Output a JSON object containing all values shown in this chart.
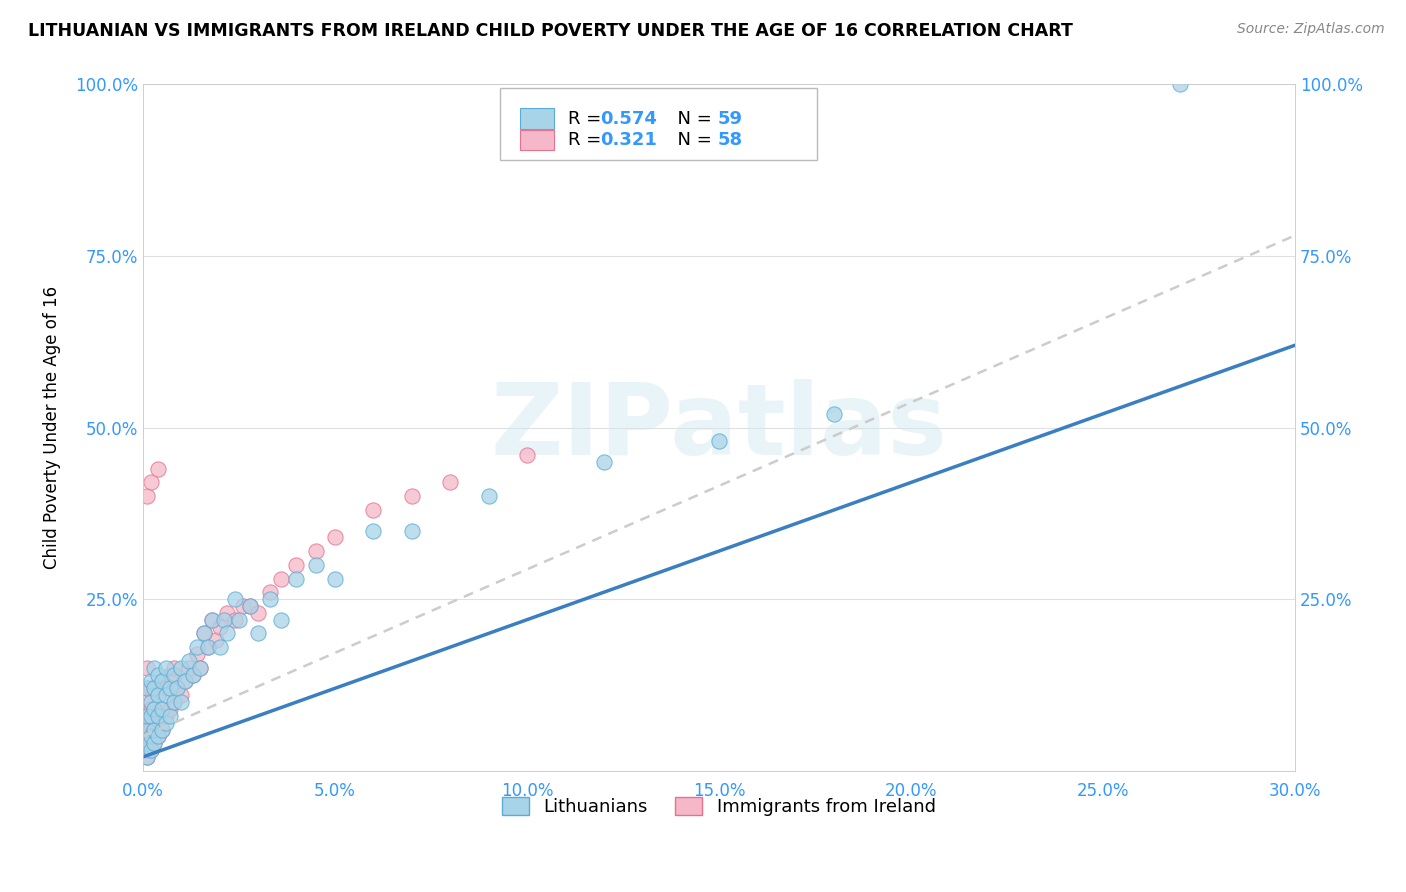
{
  "title": "LITHUANIAN VS IMMIGRANTS FROM IRELAND CHILD POVERTY UNDER THE AGE OF 16 CORRELATION CHART",
  "source": "Source: ZipAtlas.com",
  "ylabel": "Child Poverty Under the Age of 16",
  "xlim": [
    0.0,
    0.3
  ],
  "ylim": [
    0.0,
    1.0
  ],
  "xticks": [
    0.0,
    0.05,
    0.1,
    0.15,
    0.2,
    0.25,
    0.3
  ],
  "xticklabels": [
    "0.0%",
    "5.0%",
    "10.0%",
    "15.0%",
    "20.0%",
    "25.0%",
    "30.0%"
  ],
  "yticks": [
    0.0,
    0.25,
    0.5,
    0.75,
    1.0
  ],
  "yticklabels": [
    "",
    "25.0%",
    "50.0%",
    "75.0%",
    "100.0%"
  ],
  "blue_color": "#a8d4e8",
  "pink_color": "#f5b8c8",
  "blue_edge": "#5bacd4",
  "pink_edge": "#e87090",
  "trend_blue_color": "#3a7fc1",
  "trend_pink_color": "#e87090",
  "trend_pink_dash_color": "#cccccc",
  "R_blue": 0.574,
  "N_blue": 59,
  "R_pink": 0.321,
  "N_pink": 58,
  "watermark": "ZIPatlas",
  "legend_labels": [
    "Lithuanians",
    "Immigrants from Ireland"
  ],
  "blue_x": [
    0.001,
    0.001,
    0.001,
    0.001,
    0.001,
    0.002,
    0.002,
    0.002,
    0.002,
    0.002,
    0.003,
    0.003,
    0.003,
    0.003,
    0.003,
    0.004,
    0.004,
    0.004,
    0.004,
    0.005,
    0.005,
    0.005,
    0.006,
    0.006,
    0.006,
    0.007,
    0.007,
    0.008,
    0.008,
    0.009,
    0.01,
    0.01,
    0.011,
    0.012,
    0.013,
    0.014,
    0.015,
    0.016,
    0.017,
    0.018,
    0.02,
    0.021,
    0.022,
    0.024,
    0.025,
    0.028,
    0.03,
    0.033,
    0.036,
    0.04,
    0.045,
    0.05,
    0.06,
    0.07,
    0.09,
    0.12,
    0.15,
    0.18,
    0.27
  ],
  "blue_y": [
    0.02,
    0.04,
    0.06,
    0.08,
    0.12,
    0.03,
    0.05,
    0.08,
    0.1,
    0.13,
    0.04,
    0.06,
    0.09,
    0.12,
    0.15,
    0.05,
    0.08,
    0.11,
    0.14,
    0.06,
    0.09,
    0.13,
    0.07,
    0.11,
    0.15,
    0.08,
    0.12,
    0.1,
    0.14,
    0.12,
    0.1,
    0.15,
    0.13,
    0.16,
    0.14,
    0.18,
    0.15,
    0.2,
    0.18,
    0.22,
    0.18,
    0.22,
    0.2,
    0.25,
    0.22,
    0.24,
    0.2,
    0.25,
    0.22,
    0.28,
    0.3,
    0.28,
    0.35,
    0.35,
    0.4,
    0.45,
    0.48,
    0.52,
    1.0
  ],
  "pink_x": [
    0.001,
    0.001,
    0.001,
    0.001,
    0.001,
    0.001,
    0.001,
    0.001,
    0.001,
    0.002,
    0.002,
    0.002,
    0.002,
    0.002,
    0.002,
    0.003,
    0.003,
    0.003,
    0.003,
    0.004,
    0.004,
    0.004,
    0.004,
    0.005,
    0.005,
    0.005,
    0.006,
    0.006,
    0.007,
    0.007,
    0.008,
    0.008,
    0.009,
    0.01,
    0.011,
    0.012,
    0.013,
    0.014,
    0.015,
    0.016,
    0.017,
    0.018,
    0.019,
    0.02,
    0.022,
    0.024,
    0.026,
    0.028,
    0.03,
    0.033,
    0.036,
    0.04,
    0.045,
    0.05,
    0.06,
    0.07,
    0.08,
    0.1
  ],
  "pink_y": [
    0.02,
    0.03,
    0.05,
    0.07,
    0.08,
    0.1,
    0.12,
    0.15,
    0.4,
    0.03,
    0.05,
    0.07,
    0.09,
    0.12,
    0.42,
    0.04,
    0.06,
    0.09,
    0.12,
    0.05,
    0.08,
    0.11,
    0.44,
    0.06,
    0.09,
    0.13,
    0.08,
    0.12,
    0.09,
    0.14,
    0.1,
    0.15,
    0.12,
    0.11,
    0.13,
    0.15,
    0.14,
    0.17,
    0.15,
    0.2,
    0.18,
    0.22,
    0.19,
    0.21,
    0.23,
    0.22,
    0.24,
    0.24,
    0.23,
    0.26,
    0.28,
    0.3,
    0.32,
    0.34,
    0.38,
    0.4,
    0.42,
    0.46
  ],
  "blue_trend_x0": 0.0,
  "blue_trend_y0": 0.02,
  "blue_trend_x1": 0.3,
  "blue_trend_y1": 0.62,
  "pink_trend_x0": 0.0,
  "pink_trend_y0": 0.05,
  "pink_trend_x1": 0.3,
  "pink_trend_y1": 0.78
}
